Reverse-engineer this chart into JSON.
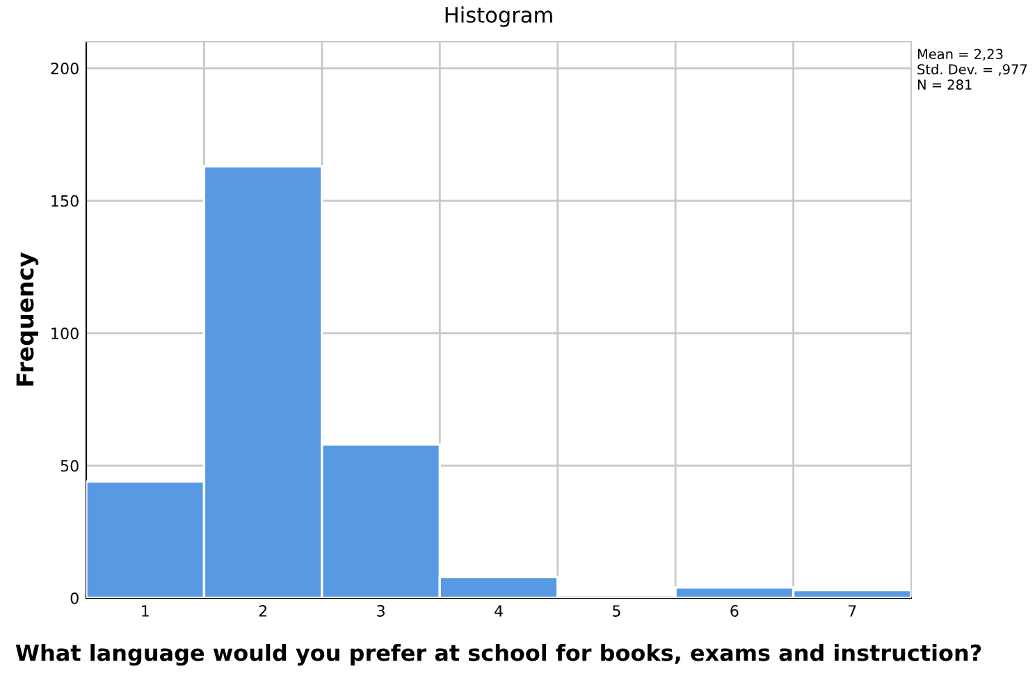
{
  "chart_data": {
    "type": "histogram",
    "title": "Histogram",
    "xlabel": "What language would you prefer at school for books, exams and instruction?",
    "ylabel": "Frequency",
    "bins": [
      0.5,
      1.5,
      2.5,
      3.5,
      4.5,
      5.5,
      6.5,
      7.5
    ],
    "values": [
      44,
      163,
      58,
      8,
      1,
      4,
      3
    ],
    "color": "#5899e3",
    "xlim": [
      0.5,
      7.5
    ],
    "xticks": [
      1,
      2,
      3,
      4,
      5,
      6,
      7
    ],
    "ylim": [
      0,
      210
    ],
    "yticks": [
      0,
      50,
      100,
      150,
      200
    ],
    "grid": "y",
    "ref_lines": [
      {
        "axis": "x",
        "value": 1.5,
        "color": "#c8c8c8"
      },
      {
        "axis": "x",
        "value": 2.5,
        "color": "#c8c8c8"
      },
      {
        "axis": "x",
        "value": 3.5,
        "color": "#c8c8c8"
      },
      {
        "axis": "x",
        "value": 4.5,
        "color": "#c8c8c8"
      },
      {
        "axis": "x",
        "value": 5.5,
        "color": "#c8c8c8"
      },
      {
        "axis": "x",
        "value": 6.5,
        "color": "#c8c8c8"
      }
    ],
    "annotations": [
      "Mean = 2,23",
      "Std. Dev. = ,977",
      "N = 281"
    ]
  }
}
